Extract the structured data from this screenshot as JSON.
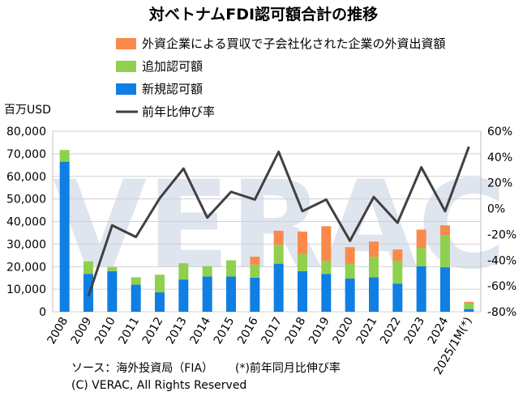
{
  "chart_data": {
    "type": "bar",
    "title": "対ベトナムFDI認可額合計の推移",
    "y_unit": "百万USD",
    "categories": [
      "2008",
      "2009",
      "2010",
      "2011",
      "2012",
      "2013",
      "2014",
      "2015",
      "2016",
      "2017",
      "2018",
      "2019",
      "2020",
      "2021",
      "2022",
      "2023",
      "2024",
      "2025/1M(*)"
    ],
    "ylim": [
      0,
      80000
    ],
    "y_ticks": [
      "0",
      "10,000",
      "20,000",
      "30,000",
      "40,000",
      "50,000",
      "60,000",
      "70,000",
      "80,000"
    ],
    "y2lim": [
      -80,
      60
    ],
    "y2_ticks": [
      "-80%",
      "-60%",
      "-40%",
      "-20%",
      "0%",
      "20%",
      "40%",
      "60%"
    ],
    "series": [
      {
        "name": "新規認可額",
        "kind": "bar-stack",
        "color": "#0f7fe3",
        "values": [
          66500,
          16800,
          18000,
          12000,
          8600,
          14300,
          15600,
          15600,
          15100,
          21300,
          18000,
          16800,
          14700,
          15300,
          12500,
          20200,
          19700,
          1200
        ]
      },
      {
        "name": "追加認可額",
        "kind": "bar-stack",
        "color": "#8fd14f",
        "values": [
          5200,
          5500,
          1800,
          3300,
          7800,
          7200,
          4600,
          7200,
          5800,
          8400,
          7600,
          5800,
          6500,
          9000,
          10100,
          8100,
          14100,
          2400
        ]
      },
      {
        "name": "外資企業による買収で子会社化された企業の外資出資額",
        "kind": "bar-stack",
        "color": "#f98a4b",
        "values": [
          0,
          0,
          0,
          0,
          0,
          0,
          0,
          0,
          3500,
          6200,
          9900,
          15300,
          7400,
          6800,
          5000,
          8100,
          4500,
          800
        ]
      },
      {
        "name": "前年比伸び率",
        "kind": "line",
        "color": "#404040",
        "values": [
          null,
          -68,
          -13,
          -22,
          8,
          31,
          -7,
          13,
          7,
          44,
          -2,
          7,
          -25,
          9,
          -11,
          32,
          -2,
          48
        ]
      }
    ],
    "grid": true,
    "legend_position": "top"
  },
  "watermark": "VERAC",
  "footer": {
    "source": "ソース：海外投資局（FIA）",
    "note": "(*)前年同月比伸び率",
    "copyright": "(C) VERAC, All Rights Reserved"
  }
}
